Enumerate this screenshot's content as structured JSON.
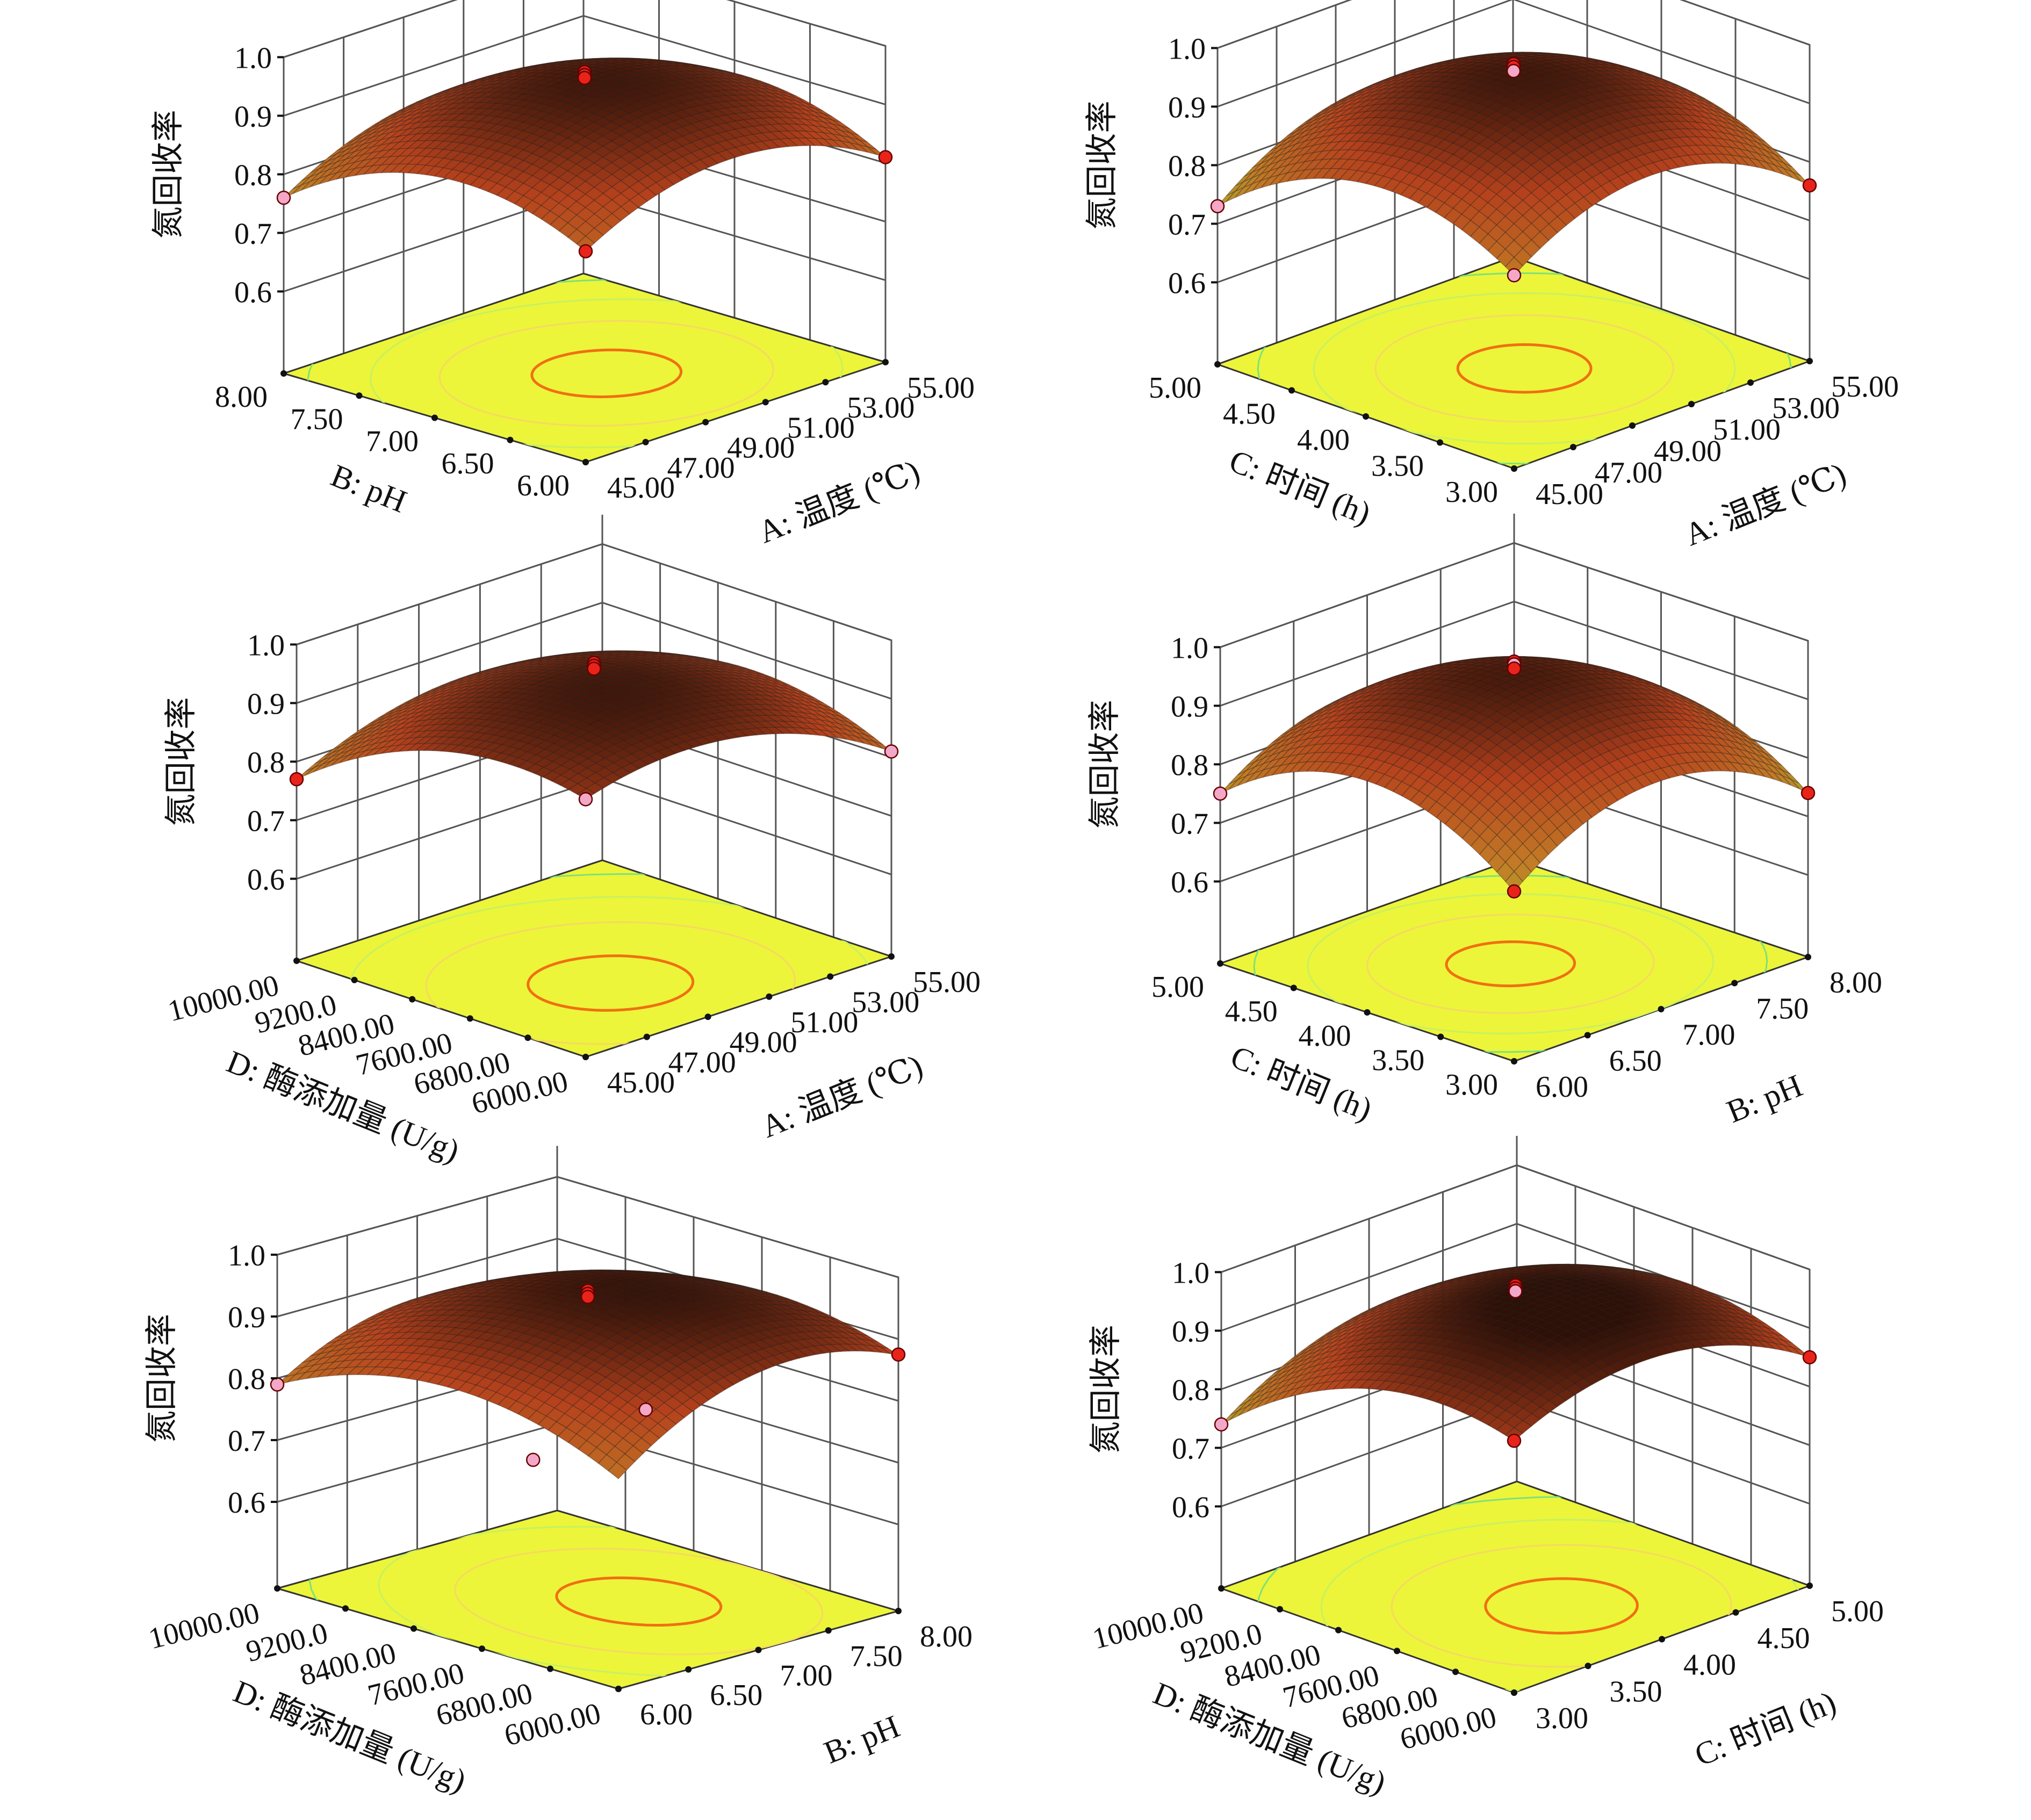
{
  "colors": {
    "floor": "#ecf53a",
    "wall_line": "#555555",
    "surface_stops": [
      "#8fe35c",
      "#a9bd2e",
      "#c27a26",
      "#b5411c",
      "#2e1007"
    ],
    "mesh_line": "#1a1a1a",
    "point_red": "#e8241a",
    "point_pink": "#f4a8c8",
    "contours": [
      "#f07010",
      "#f7d860",
      "#c8f060",
      "#7fe07a"
    ]
  },
  "chart_data": [
    {
      "type": "surface",
      "zlabel": "氮回收率",
      "z_ticks": [
        "0.6",
        "0.7",
        "0.8",
        "0.9",
        "1.0"
      ],
      "z_tick_values": [
        0.6,
        0.7,
        0.8,
        0.9,
        1.0
      ],
      "right_axis": {
        "label": "A: 温度 (℃)",
        "range": [
          45,
          55
        ],
        "ticks": [
          "45.00",
          "47.00",
          "49.00",
          "51.00",
          "53.00",
          "55.00"
        ],
        "tick_values": [
          45,
          47,
          49,
          51,
          53,
          55
        ]
      },
      "left_axis": {
        "label": "B: pH",
        "range": [
          6,
          8
        ],
        "ticks": [
          "6.00",
          "6.50",
          "7.00",
          "7.50",
          "8.00"
        ],
        "tick_values": [
          6,
          6.5,
          7,
          7.5,
          8
        ]
      },
      "model": {
        "center": 0.955,
        "la": 0.0025,
        "lb": -0.0225,
        "ab": 0.0075,
        "qa": 0.08,
        "qb": 0.0825
      },
      "design_points": [
        {
          "r": 50,
          "l": 7,
          "z": 0.965,
          "color": "red"
        },
        {
          "r": 50,
          "l": 7,
          "z": 0.96,
          "color": "red"
        },
        {
          "r": 50,
          "l": 7,
          "z": 0.955,
          "color": "red"
        },
        {
          "r": 45,
          "l": 6,
          "z": 0.82,
          "color": "red"
        },
        {
          "r": 45,
          "l": 8,
          "z": 0.76,
          "color": "pink"
        },
        {
          "r": 55,
          "l": 6,
          "z": 0.81,
          "color": "red"
        }
      ]
    },
    {
      "type": "surface",
      "zlabel": "氮回收率",
      "z_ticks": [
        "0.6",
        "0.7",
        "0.8",
        "0.9",
        "1.0"
      ],
      "z_tick_values": [
        0.6,
        0.7,
        0.8,
        0.9,
        1.0
      ],
      "right_axis": {
        "label": "A: 温度 (℃)",
        "range": [
          45,
          55
        ],
        "ticks": [
          "45.00",
          "47.00",
          "49.00",
          "51.00",
          "53.00",
          "55.00"
        ],
        "tick_values": [
          45,
          47,
          49,
          51,
          53,
          55
        ]
      },
      "left_axis": {
        "label": "C: 时间 (h)",
        "range": [
          3,
          5
        ],
        "ticks": [
          "3.00",
          "3.50",
          "4.00",
          "4.50",
          "5.00"
        ],
        "tick_values": [
          3,
          3.5,
          4,
          4.5,
          5
        ]
      },
      "model": {
        "center": 0.955,
        "la": -0.0025,
        "lb": -0.0175,
        "ab": 0.0125,
        "qa": 0.1,
        "qb": 0.0975
      },
      "design_points": [
        {
          "r": 50,
          "l": 4,
          "z": 0.97,
          "color": "red"
        },
        {
          "r": 50,
          "l": 4,
          "z": 0.965,
          "color": "red"
        },
        {
          "r": 50,
          "l": 4,
          "z": 0.958,
          "color": "pink"
        },
        {
          "r": 45,
          "l": 3,
          "z": 0.79,
          "color": "pink"
        },
        {
          "r": 45,
          "l": 5,
          "z": 0.73,
          "color": "pink"
        },
        {
          "r": 55,
          "l": 3,
          "z": 0.76,
          "color": "red"
        }
      ]
    },
    {
      "type": "surface",
      "zlabel": "氮回收率",
      "z_ticks": [
        "0.6",
        "0.7",
        "0.8",
        "0.9",
        "1.0"
      ],
      "z_tick_values": [
        0.6,
        0.7,
        0.8,
        0.9,
        1.0
      ],
      "right_axis": {
        "label": "A: 温度 (℃)",
        "range": [
          45,
          55
        ],
        "ticks": [
          "45.00",
          "47.00",
          "49.00",
          "51.00",
          "53.00",
          "55.00"
        ],
        "tick_values": [
          45,
          47,
          49,
          51,
          53,
          55
        ]
      },
      "left_axis": {
        "label": "D: 酶添加量 (U/g)",
        "range": [
          6000,
          10000
        ],
        "ticks": [
          "6000.00",
          "6800.00",
          "7600.00",
          "8400.00",
          "9200.0",
          "10000.00"
        ],
        "tick_values": [
          6000,
          6800,
          7600,
          8400,
          9200,
          10000
        ]
      },
      "model": {
        "center": 0.95,
        "la": -0.015,
        "lb": -0.035,
        "ab": 0.03,
        "qa": 0.065,
        "qb": 0.065
      },
      "design_points": [
        {
          "r": 50,
          "l": 8000,
          "z": 0.965,
          "color": "red"
        },
        {
          "r": 50,
          "l": 8000,
          "z": 0.96,
          "color": "red"
        },
        {
          "r": 50,
          "l": 8000,
          "z": 0.955,
          "color": "red"
        },
        {
          "r": 45,
          "l": 6000,
          "z": 0.9,
          "color": "pink"
        },
        {
          "r": 45,
          "l": 10000,
          "z": 0.77,
          "color": "red"
        },
        {
          "r": 55,
          "l": 6000,
          "z": 0.81,
          "color": "pink"
        }
      ]
    },
    {
      "type": "surface",
      "zlabel": "氮回收率",
      "z_ticks": [
        "0.6",
        "0.7",
        "0.8",
        "0.9",
        "1.0"
      ],
      "z_tick_values": [
        0.6,
        0.7,
        0.8,
        0.9,
        1.0
      ],
      "right_axis": {
        "label": "B: pH",
        "range": [
          6,
          8
        ],
        "ticks": [
          "6.00",
          "6.50",
          "7.00",
          "7.50",
          "8.00"
        ],
        "tick_values": [
          6,
          6.5,
          7,
          7.5,
          8
        ]
      },
      "left_axis": {
        "label": "C: 时间 (h)",
        "range": [
          3,
          5
        ],
        "ticks": [
          "3.00",
          "3.50",
          "4.00",
          "4.50",
          "5.00"
        ],
        "tick_values": [
          3,
          3.5,
          4,
          4.5,
          5
        ]
      },
      "model": {
        "center": 0.95,
        "la": -0.01,
        "lb": -0.005,
        "ab": -0.005,
        "qa": 0.105,
        "qb": 0.105
      },
      "design_points": [
        {
          "r": 7,
          "l": 4,
          "z": 0.97,
          "color": "red"
        },
        {
          "r": 7,
          "l": 4,
          "z": 0.965,
          "color": "pink"
        },
        {
          "r": 7,
          "l": 4,
          "z": 0.958,
          "color": "red"
        },
        {
          "r": 6,
          "l": 3,
          "z": 0.75,
          "color": "red"
        },
        {
          "r": 6,
          "l": 5,
          "z": 0.75,
          "color": "pink"
        },
        {
          "r": 8,
          "l": 3,
          "z": 0.74,
          "color": "red"
        }
      ]
    },
    {
      "type": "surface",
      "zlabel": "氮回收率",
      "z_ticks": [
        "0.6",
        "0.7",
        "0.8",
        "0.9",
        "1.0"
      ],
      "z_tick_values": [
        0.6,
        0.7,
        0.8,
        0.9,
        1.0
      ],
      "right_axis": {
        "label": "B: pH",
        "range": [
          6,
          8
        ],
        "ticks": [
          "6.00",
          "6.50",
          "7.00",
          "7.50",
          "8.00"
        ],
        "tick_values": [
          6,
          6.5,
          7,
          7.5,
          8
        ]
      },
      "left_axis": {
        "label": "D: 酶添加量 (U/g)",
        "range": [
          6000,
          10000
        ],
        "ticks": [
          "6000.00",
          "6800.00",
          "7600.00",
          "8400.00",
          "9200.0",
          "10000.00"
        ],
        "tick_values": [
          6000,
          6800,
          7600,
          8400,
          9200,
          10000
        ]
      },
      "model": {
        "center": 0.96,
        "la": 0.021,
        "lb": -0.021,
        "ab": -0.016,
        "qa": 0.072,
        "qb": 0.072
      },
      "design_points": [
        {
          "r": 7,
          "l": 8000,
          "z": 0.96,
          "color": "red"
        },
        {
          "r": 7,
          "l": 8000,
          "z": 0.955,
          "color": "red"
        },
        {
          "r": 7,
          "l": 8000,
          "z": 0.95,
          "color": "red"
        },
        {
          "r": 6,
          "l": 10000,
          "z": 0.79,
          "color": "pink"
        },
        {
          "r": 6,
          "l": 7000,
          "z": 0.79,
          "color": "pink"
        },
        {
          "r": 6.5,
          "l": 6500,
          "z": 0.86,
          "color": "pink"
        },
        {
          "r": 8,
          "l": 6000,
          "z": 0.875,
          "color": "red"
        }
      ]
    },
    {
      "type": "surface",
      "zlabel": "氮回收率",
      "z_ticks": [
        "0.6",
        "0.7",
        "0.8",
        "0.9",
        "1.0"
      ],
      "z_tick_values": [
        0.6,
        0.7,
        0.8,
        0.9,
        1.0
      ],
      "right_axis": {
        "label": "C: 时间 (h)",
        "range": [
          3,
          5
        ],
        "ticks": [
          "3.00",
          "3.50",
          "4.00",
          "4.50",
          "5.00"
        ],
        "tick_values": [
          3,
          3.5,
          4,
          4.5,
          5
        ]
      },
      "left_axis": {
        "label": "D: 酶添加量 (U/g)",
        "range": [
          6000,
          10000
        ],
        "ticks": [
          "6000.00",
          "6800.00",
          "7600.00",
          "8400.00",
          "9200.0",
          "10000.00"
        ],
        "tick_values": [
          6000,
          6800,
          7600,
          8400,
          9200,
          10000
        ]
      },
      "model": {
        "center": 0.97,
        "la": 0.005,
        "lb": -0.05,
        "ab": 0.025,
        "qa": 0.075,
        "qb": 0.075
      },
      "design_points": [
        {
          "r": 4,
          "l": 8000,
          "z": 0.975,
          "color": "red"
        },
        {
          "r": 4,
          "l": 8000,
          "z": 0.97,
          "color": "red"
        },
        {
          "r": 4,
          "l": 8000,
          "z": 0.965,
          "color": "pink"
        },
        {
          "r": 3,
          "l": 6000,
          "z": 0.89,
          "color": "red"
        },
        {
          "r": 3,
          "l": 10000,
          "z": 0.74,
          "color": "pink"
        },
        {
          "r": 5,
          "l": 6000,
          "z": 0.85,
          "color": "red"
        }
      ]
    }
  ]
}
